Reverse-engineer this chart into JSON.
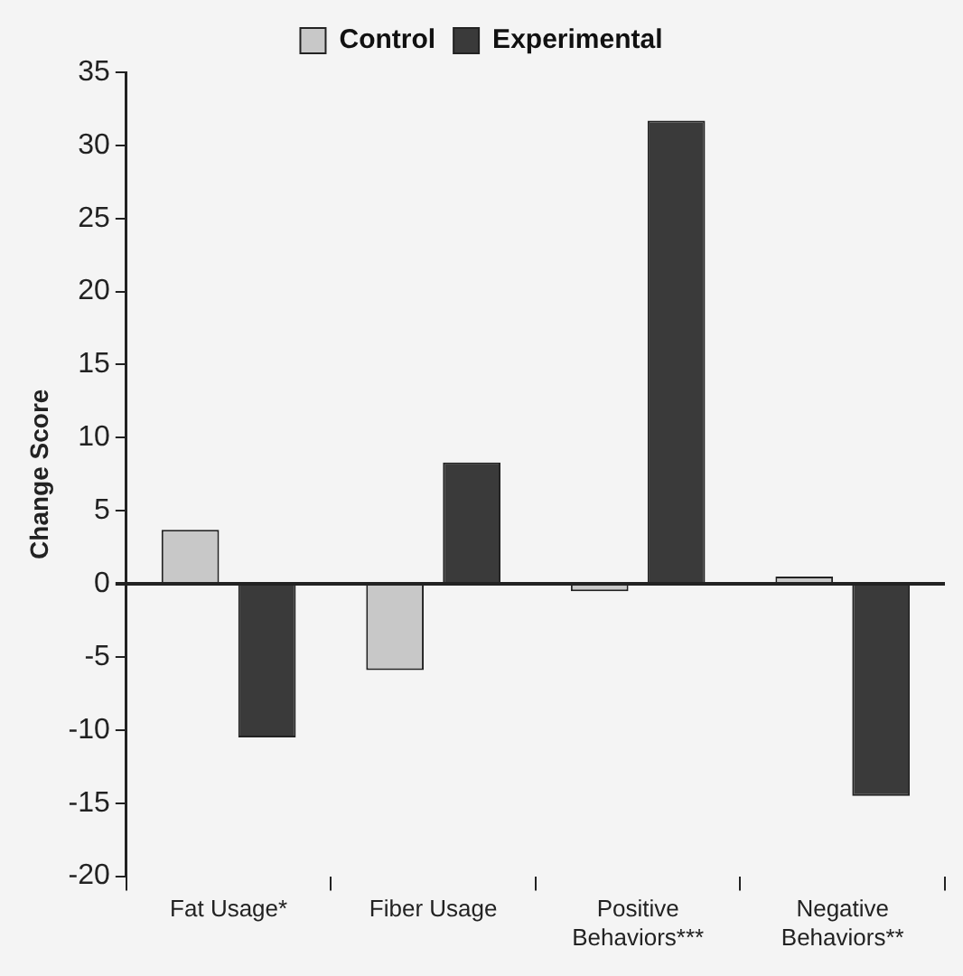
{
  "chart_data": {
    "type": "bar",
    "ylabel": "Change Score",
    "categories": [
      "Fat Usage*",
      "Fiber Usage",
      "Positive Behaviors***",
      "Negative Behaviors**"
    ],
    "series": [
      {
        "name": "Control",
        "color": "#c8c8c8",
        "values": [
          3.7,
          -5.9,
          -0.5,
          0.5
        ]
      },
      {
        "name": "Experimental",
        "color": "#3a3a3a",
        "values": [
          -10.5,
          8.3,
          31.7,
          -14.5
        ]
      }
    ],
    "ylim": [
      -20,
      35
    ],
    "yticks": [
      -20,
      -15,
      -10,
      -5,
      0,
      5,
      10,
      15,
      20,
      25,
      30,
      35
    ],
    "legend": "top"
  }
}
